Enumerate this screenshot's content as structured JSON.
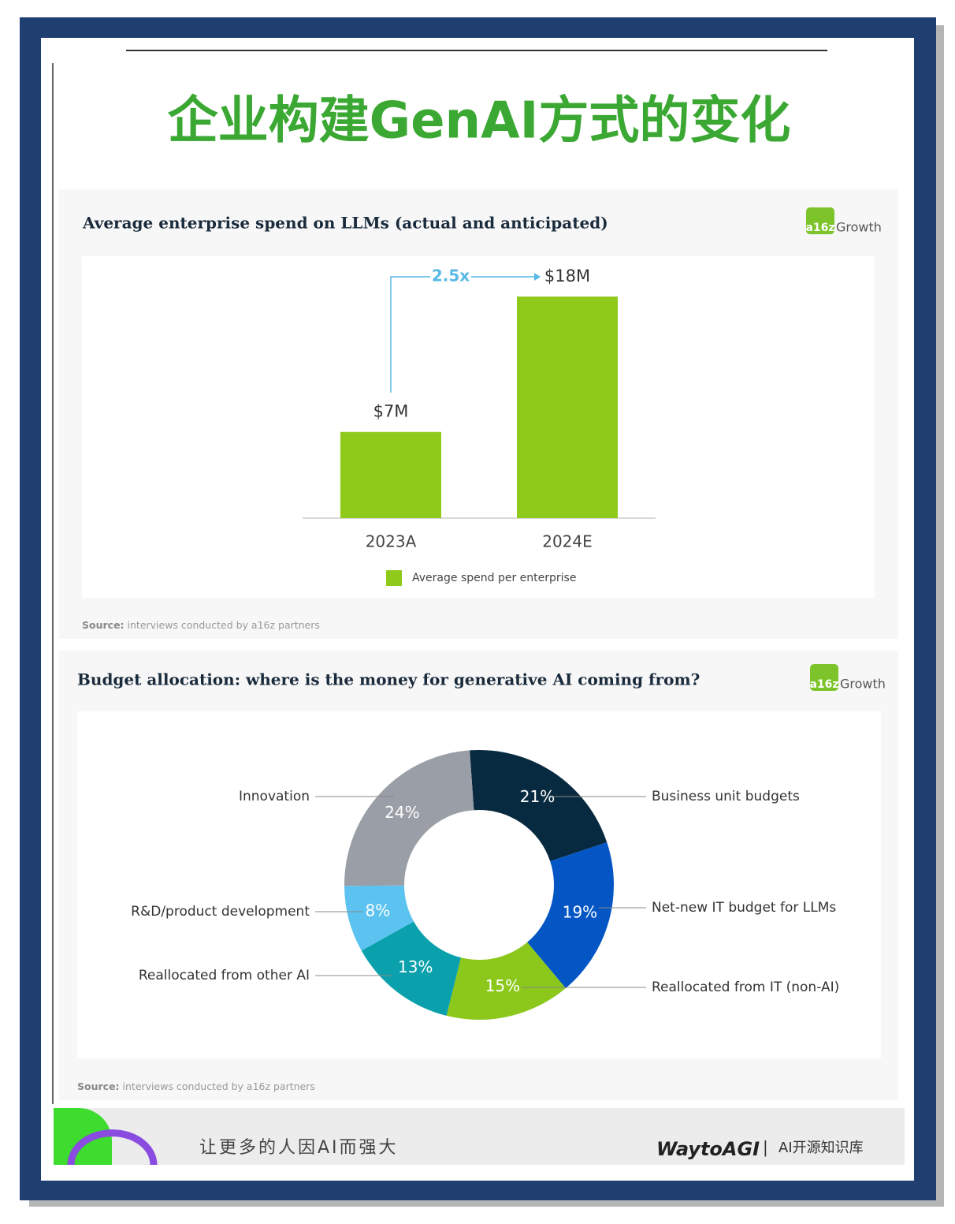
{
  "header": {
    "title": "企业构建GenAI方式的变化"
  },
  "chart_data": [
    {
      "type": "bar",
      "title": "Average enterprise spend on LLMs (actual and anticipated)",
      "logo": {
        "mark": "a16z",
        "text": "Growth"
      },
      "categories": [
        "2023A",
        "2024E"
      ],
      "series": [
        {
          "name": "Average spend per enterprise",
          "color": "#8fc91a",
          "values": [
            7,
            18
          ],
          "value_labels": [
            "$7M",
            "$18M"
          ]
        }
      ],
      "ylim": [
        0,
        18
      ],
      "annotation": "2.5x",
      "source": {
        "label": "Source:",
        "text": "interviews conducted by a16z partners"
      }
    },
    {
      "type": "donut",
      "title": "Budget allocation: where is the money for generative AI coming from?",
      "logo": {
        "mark": "a16z",
        "text": "Growth"
      },
      "categories": [
        "Business unit budgets",
        "Net-new IT budget for LLMs",
        "Reallocated from IT (non-AI)",
        "Reallocated from other AI",
        "R&D/product development",
        "Innovation"
      ],
      "values": [
        21,
        19,
        15,
        13,
        8,
        24
      ],
      "value_labels": [
        "21%",
        "19%",
        "15%",
        "13%",
        "8%",
        "24%"
      ],
      "colors": [
        "#082a40",
        "#0356c4",
        "#8cc81c",
        "#0aa1ad",
        "#5cc3f0",
        "#9a9ea6"
      ],
      "source": {
        "label": "Source:",
        "text": "interviews conducted by a16z partners"
      }
    }
  ],
  "footer": {
    "slogan": "让更多的人因AI而强大",
    "brand": "WaytoAGI",
    "separator": "|",
    "tagline": "AI开源知识库"
  }
}
